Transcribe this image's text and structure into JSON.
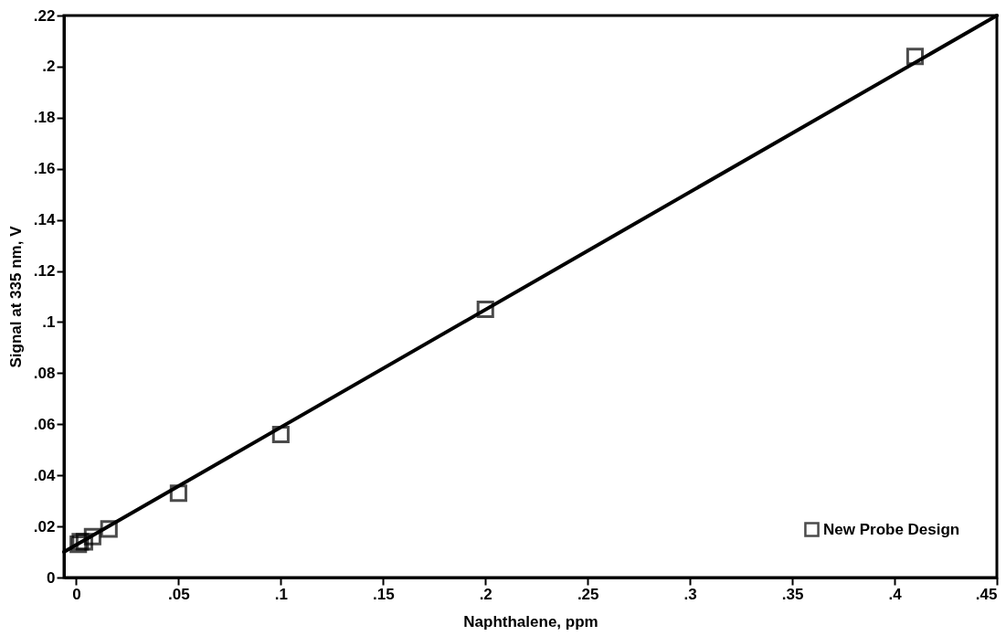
{
  "chart_data": {
    "type": "scatter",
    "xlabel": "Naphthalene, ppm",
    "ylabel": "Signal at 335 nm, V",
    "marker": "square",
    "legend": "bottom right",
    "xlim": [
      -0.006,
      0.45
    ],
    "ylim": [
      0,
      0.22
    ],
    "xticks": [
      0,
      {
        "value": 0.05,
        "label": ".05"
      },
      {
        "value": 0.1,
        "label": ".1"
      },
      {
        "value": 0.15,
        "label": ".15"
      },
      {
        "value": 0.2,
        "label": ".2"
      },
      {
        "value": 0.25,
        "label": ".25"
      },
      {
        "value": 0.3,
        "label": ".3"
      },
      {
        "value": 0.35,
        "label": ".35"
      },
      {
        "value": 0.4,
        "label": ".4"
      },
      {
        "value": 0.45,
        "label": ".45"
      }
    ],
    "yticks": [
      0,
      {
        "value": 0.02,
        "label": ".02"
      },
      {
        "value": 0.04,
        "label": ".04"
      },
      {
        "value": 0.06,
        "label": ".06"
      },
      {
        "value": 0.08,
        "label": ".08"
      },
      {
        "value": 0.1,
        "label": ".1"
      },
      {
        "value": 0.12,
        "label": ".12"
      },
      {
        "value": 0.14,
        "label": ".14"
      },
      {
        "value": 0.16,
        "label": ".16"
      },
      {
        "value": 0.18,
        "label": ".18"
      },
      {
        "value": 0.2,
        "label": ".2"
      },
      {
        "value": 0.22,
        "label": ".22"
      }
    ],
    "series": [
      {
        "name": "New Probe Design",
        "color": "#000000",
        "x": [
          0.001,
          0.002,
          0.004,
          0.008,
          0.016,
          0.05,
          0.1,
          0.2,
          0.41
        ],
        "values": [
          0.013,
          0.014,
          0.014,
          0.016,
          0.019,
          0.033,
          0.056,
          0.105,
          0.204
        ]
      },
      {
        "type": "line",
        "color": "#000000",
        "marker": "none",
        "line_style": "solid",
        "x": [
          -0.006,
          0.45
        ],
        "values": [
          0.01,
          0.22
        ]
      }
    ]
  }
}
